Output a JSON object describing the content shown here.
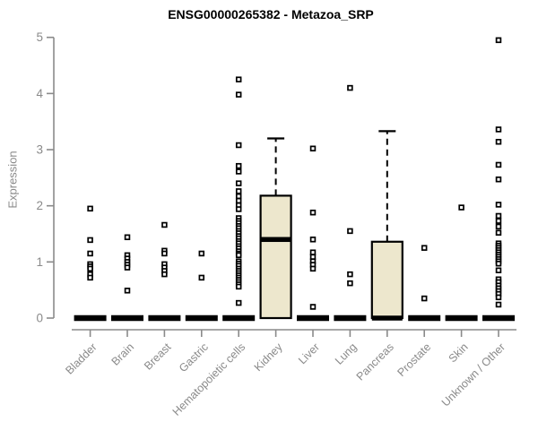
{
  "title": "ENSG00000265382 - Metazoa_SRP",
  "colors": {
    "box_fill": "#EDE7CD",
    "box_stroke": "#000000",
    "median": "#000000",
    "outlier_stroke": "#000000",
    "outlier_fill": "#ffffff",
    "axis": "#8a8a8a",
    "tick_label": "#8a8a8a",
    "title_color": "#000000"
  },
  "chart_data": {
    "type": "boxplot",
    "title": "ENSG00000265382 - Metazoa_SRP",
    "xlabel": "",
    "ylabel": "Expression",
    "ylim": [
      0,
      5
    ],
    "yticks": [
      0,
      1,
      2,
      3,
      4,
      5
    ],
    "grid": false,
    "legend_position": "none",
    "categories": [
      "Bladder",
      "Brain",
      "Breast",
      "Gastric",
      "Hematopoietic cells",
      "Kidney",
      "Liver",
      "Lung",
      "Pancreas",
      "Prostate",
      "Skin",
      "Unknown / Other"
    ],
    "series": [
      {
        "name": "Bladder",
        "q1": 0,
        "median": 0,
        "q3": 0,
        "whisker_low": 0,
        "whisker_high": 0,
        "outliers": [
          1.95,
          1.39,
          1.15,
          0.96,
          0.92,
          0.88,
          0.78,
          0.72
        ]
      },
      {
        "name": "Brain",
        "q1": 0,
        "median": 0,
        "q3": 0,
        "whisker_low": 0,
        "whisker_high": 0,
        "outliers": [
          1.44,
          1.12,
          1.06,
          1.0,
          0.95,
          0.9,
          0.49
        ]
      },
      {
        "name": "Breast",
        "q1": 0,
        "median": 0,
        "q3": 0,
        "whisker_low": 0,
        "whisker_high": 0,
        "outliers": [
          1.66,
          1.2,
          1.15,
          0.96,
          0.9,
          0.84,
          0.78
        ]
      },
      {
        "name": "Gastric",
        "q1": 0,
        "median": 0,
        "q3": 0,
        "whisker_low": 0,
        "whisker_high": 0,
        "outliers": [
          1.15,
          0.72
        ]
      },
      {
        "name": "Hematopoietic cells",
        "q1": 0,
        "median": 0,
        "q3": 0,
        "whisker_low": 0,
        "whisker_high": 0,
        "outliers": [
          4.25,
          3.98,
          3.08,
          2.71,
          2.61,
          2.4,
          2.26,
          2.17,
          2.09,
          2.01,
          1.94,
          1.78,
          1.73,
          1.69,
          1.64,
          1.6,
          1.55,
          1.51,
          1.46,
          1.42,
          1.37,
          1.33,
          1.28,
          1.24,
          1.19,
          1.15,
          1.12,
          1.01,
          0.97,
          0.93,
          0.88,
          0.84,
          0.8,
          0.76,
          0.72,
          0.68,
          0.64,
          0.6,
          0.56,
          0.27
        ]
      },
      {
        "name": "Kidney",
        "q1": 0,
        "median": 1.4,
        "q3": 2.18,
        "whisker_low": 0,
        "whisker_high": 3.2,
        "outliers": []
      },
      {
        "name": "Liver",
        "q1": 0,
        "median": 0,
        "q3": 0,
        "whisker_low": 0,
        "whisker_high": 0,
        "outliers": [
          3.02,
          1.88,
          1.4,
          1.17,
          1.09,
          1.01,
          0.95,
          0.88,
          0.2
        ]
      },
      {
        "name": "Lung",
        "q1": 0,
        "median": 0,
        "q3": 0,
        "whisker_low": 0,
        "whisker_high": 0,
        "outliers": [
          4.1,
          1.55,
          0.78,
          0.62
        ]
      },
      {
        "name": "Pancreas",
        "q1": 0,
        "median": 0,
        "q3": 1.36,
        "whisker_low": 0,
        "whisker_high": 3.33,
        "outliers": []
      },
      {
        "name": "Prostate",
        "q1": 0,
        "median": 0,
        "q3": 0,
        "whisker_low": 0,
        "whisker_high": 0,
        "outliers": [
          1.25,
          0.35
        ]
      },
      {
        "name": "Skin",
        "q1": 0,
        "median": 0,
        "q3": 0,
        "whisker_low": 0,
        "whisker_high": 0,
        "outliers": [
          1.97
        ]
      },
      {
        "name": "Unknown / Other",
        "q1": 0,
        "median": 0,
        "q3": 0,
        "whisker_low": 0,
        "whisker_high": 0,
        "outliers": [
          4.95,
          3.36,
          3.14,
          2.73,
          2.47,
          2.02,
          1.82,
          1.73,
          1.63,
          1.52,
          1.33,
          1.29,
          1.25,
          1.21,
          1.17,
          1.13,
          1.09,
          1.05,
          1.01,
          0.97,
          0.85,
          0.69,
          0.64,
          0.58,
          0.53,
          0.48,
          0.43,
          0.37,
          0.24
        ]
      }
    ]
  }
}
